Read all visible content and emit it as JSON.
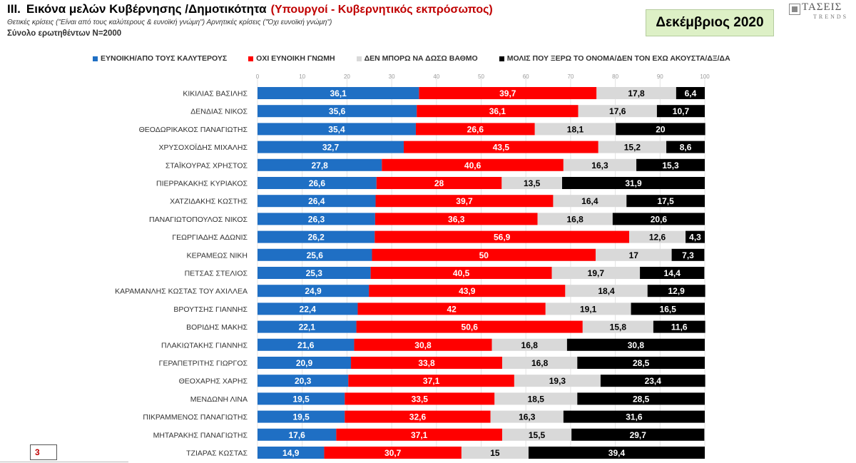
{
  "header": {
    "numeral": "III.",
    "title": "Εικόνα μελών Κυβέρνησης /Δημοτικότητα",
    "title_accent": "(Υπουργοί - Κυβερνητικός εκπρόσωπος)",
    "subtitle": "Θετικές κρίσεις (\"Είναι από τους καλύτερους & ευνοϊκή γνώμη\")  Αρνητικές κρίσεις (\"Όχι ευνοϊκή γνώμη\")",
    "sample": "Σύνολο ερωτηθέντων N=2000",
    "date": "Δεκέμβριος 2020"
  },
  "logo": {
    "name": "ΤΑΣΕΙΣ",
    "sub": "TRENDS"
  },
  "footer": {
    "page_number": "3"
  },
  "chart_data": {
    "type": "bar",
    "orientation": "horizontal",
    "stacked": true,
    "xlim": [
      0,
      100
    ],
    "x_ticks": [
      "0",
      "10",
      "20",
      "30",
      "40",
      "50",
      "60",
      "70",
      "80",
      "90",
      "100"
    ],
    "grid": true,
    "legend_position": "top",
    "categories": [
      "ΚΙΚΙΛΙΑΣ ΒΑΣΙΛΗΣ",
      "ΔΕΝΔΙΑΣ ΝΙΚΟΣ",
      "ΘΕΟΔΩΡΙΚΑΚΟΣ ΠΑΝΑΓΙΩΤΗΣ",
      "ΧΡΥΣΟΧΟΪΔΗΣ ΜΙΧΑΛΗΣ",
      "ΣΤΑΪΚΟΥΡΑΣ ΧΡΗΣΤΟΣ",
      "ΠΙΕΡΡΑΚΑΚΗΣ ΚΥΡΙΑΚΟΣ",
      "ΧΑΤΖΙΔΑΚΗΣ ΚΩΣΤΗΣ",
      "ΠΑΝΑΓΙΩΤΟΠΟΥΛΟΣ ΝΙΚΟΣ",
      "ΓΕΩΡΓΙΑΔΗΣ ΑΔΩΝΙΣ",
      "ΚΕΡΑΜΕΩΣ ΝΙΚΗ",
      "ΠΕΤΣΑΣ ΣΤΕΛΙΟΣ",
      "ΚΑΡΑΜΑΝΛΗΣ ΚΩΣΤΑΣ ΤΟΥ ΑΧΙΛΛΕΑ",
      "ΒΡΟΥΤΣΗΣ ΓΙΑΝΝΗΣ",
      "ΒΟΡΙΔΗΣ ΜΑΚΗΣ",
      "ΠΛΑΚΙΩΤΑΚΗΣ ΓΙΑΝΝΗΣ",
      "ΓΕΡΑΠΕΤΡΙΤΗΣ ΓΙΩΡΓΟΣ",
      "ΘΕΟΧΑΡΗΣ ΧΑΡΗΣ",
      "ΜΕΝΔΩΝΗ ΛΙΝΑ",
      "ΠΙΚΡΑΜΜΕΝΟΣ ΠΑΝΑΓΙΩΤΗΣ",
      "ΜΗΤΑΡΑΚΗΣ ΠΑΝΑΓΙΩΤΗΣ",
      "ΤΖΙΑΡΑΣ ΚΩΣΤΑΣ"
    ],
    "series": [
      {
        "name": "ΕΥΝΟΙΚΗ/ΑΠΟ ΤΟΥΣ ΚΑΛΥΤΕΡΟΥΣ",
        "color": "#1f6fc4",
        "label_color": "#ffffff",
        "values": [
          36.1,
          35.6,
          35.4,
          32.7,
          27.8,
          26.6,
          26.4,
          26.3,
          26.2,
          25.6,
          25.3,
          24.9,
          22.4,
          22.1,
          21.6,
          20.9,
          20.3,
          19.5,
          19.5,
          17.6,
          14.9
        ]
      },
      {
        "name": "ΟΧΙ ΕΥΝΟΙΚΗ ΓΝΩΜΗ",
        "color": "#ff0000",
        "label_color": "#ffffff",
        "values": [
          39.7,
          36.1,
          26.6,
          43.5,
          40.6,
          28,
          39.7,
          36.3,
          56.9,
          50,
          40.5,
          43.9,
          42,
          50.6,
          30.8,
          33.8,
          37.1,
          33.5,
          32.6,
          37.1,
          30.7
        ]
      },
      {
        "name": "ΔΕΝ ΜΠΟΡΩ ΝΑ ΔΩΣΩ ΒΑΘΜΟ",
        "color": "#d9d9d9",
        "label_color": "#000000",
        "values": [
          17.8,
          17.6,
          18.1,
          15.2,
          16.3,
          13.5,
          16.4,
          16.8,
          12.6,
          17,
          19.7,
          18.4,
          19.1,
          15.8,
          16.8,
          16.8,
          19.3,
          18.5,
          16.3,
          15.5,
          15
        ]
      },
      {
        "name": "ΜΟΛΙΣ ΠΟΥ ΞΕΡΩ ΤΟ ΟΝΟΜΑ/ΔΕΝ ΤΟΝ ΕΧΩ ΑΚΟΥΣΤΑ/ΔΞ/ΔΑ",
        "color": "#000000",
        "label_color": "#ffffff",
        "values": [
          6.4,
          10.7,
          20,
          8.6,
          15.3,
          31.9,
          17.5,
          20.6,
          4.3,
          7.3,
          14.4,
          12.9,
          16.5,
          11.6,
          30.8,
          28.5,
          23.4,
          28.5,
          31.6,
          29.7,
          39.4
        ]
      }
    ]
  }
}
